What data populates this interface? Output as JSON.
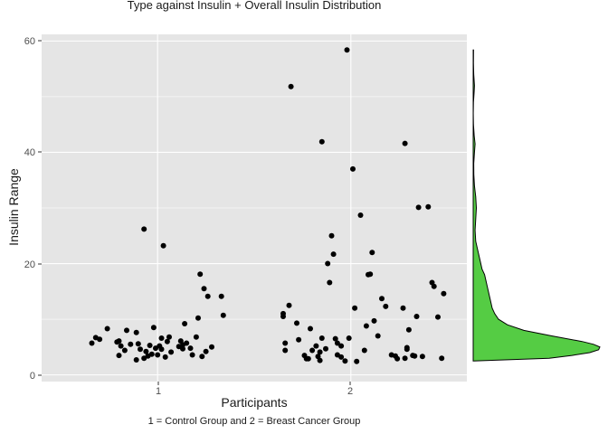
{
  "chart_data": {
    "type": "scatter",
    "title": "Type against Insulin + Overall Insulin Distribution",
    "xlabel": "Participants",
    "ylabel": "Insulin Range",
    "caption": "1 = Control Group and 2 = Breast Cancer Group",
    "x_ticks": [
      "1",
      "2"
    ],
    "y_ticks": [
      "0",
      "20",
      "40",
      "60"
    ],
    "xlim": [
      0.4,
      2.6
    ],
    "ylim": [
      -1.2,
      61.2
    ],
    "grid": true,
    "colors": {
      "panel": "#e5e5e5",
      "grid": "#ffffff",
      "point": "#000000",
      "density_fill": "#55cc44",
      "density_line": "#000000"
    },
    "series": [
      {
        "group": "1",
        "points": [
          [
            0.66,
            5.7
          ],
          [
            0.68,
            6.7
          ],
          [
            0.7,
            6.4
          ],
          [
            0.74,
            8.3
          ],
          [
            0.79,
            5.9
          ],
          [
            0.8,
            6.1
          ],
          [
            0.8,
            3.5
          ],
          [
            0.81,
            5.2
          ],
          [
            0.83,
            4.4
          ],
          [
            0.84,
            8.0
          ],
          [
            0.86,
            5.5
          ],
          [
            0.89,
            7.6
          ],
          [
            0.9,
            5.6
          ],
          [
            0.89,
            2.7
          ],
          [
            0.91,
            4.6
          ],
          [
            0.93,
            26.2
          ],
          [
            0.93,
            3.0
          ],
          [
            0.94,
            4.2
          ],
          [
            0.95,
            3.4
          ],
          [
            0.96,
            5.3
          ],
          [
            0.97,
            3.7
          ],
          [
            0.98,
            8.5
          ],
          [
            0.99,
            4.8
          ],
          [
            1.0,
            3.6
          ],
          [
            1.01,
            5.2
          ],
          [
            1.02,
            4.6
          ],
          [
            1.02,
            6.6
          ],
          [
            1.03,
            23.2
          ],
          [
            1.04,
            3.2
          ],
          [
            1.05,
            6.0
          ],
          [
            1.06,
            6.8
          ],
          [
            1.07,
            4.1
          ],
          [
            1.11,
            5.1
          ],
          [
            1.12,
            6.1
          ],
          [
            1.13,
            4.7
          ],
          [
            1.13,
            5.4
          ],
          [
            1.14,
            9.2
          ],
          [
            1.15,
            5.7
          ],
          [
            1.17,
            4.8
          ],
          [
            1.18,
            3.6
          ],
          [
            1.2,
            6.8
          ],
          [
            1.21,
            10.2
          ],
          [
            1.22,
            18.1
          ],
          [
            1.23,
            3.3
          ],
          [
            1.24,
            15.5
          ],
          [
            1.25,
            4.2
          ],
          [
            1.26,
            14.1
          ],
          [
            1.28,
            5.0
          ],
          [
            1.33,
            14.1
          ],
          [
            1.34,
            10.7
          ]
        ]
      },
      {
        "group": "2",
        "points": [
          [
            1.65,
            10.5
          ],
          [
            1.65,
            11.0
          ],
          [
            1.66,
            5.7
          ],
          [
            1.66,
            4.4
          ],
          [
            1.68,
            12.5
          ],
          [
            1.69,
            51.8
          ],
          [
            1.72,
            9.3
          ],
          [
            1.73,
            6.3
          ],
          [
            1.76,
            3.5
          ],
          [
            1.77,
            2.9
          ],
          [
            1.78,
            2.9
          ],
          [
            1.79,
            8.3
          ],
          [
            1.8,
            4.4
          ],
          [
            1.82,
            5.2
          ],
          [
            1.83,
            3.3
          ],
          [
            1.84,
            2.6
          ],
          [
            1.84,
            4.1
          ],
          [
            1.85,
            6.6
          ],
          [
            1.85,
            41.9
          ],
          [
            1.87,
            4.7
          ],
          [
            1.88,
            20.0
          ],
          [
            1.89,
            16.6
          ],
          [
            1.9,
            25.0
          ],
          [
            1.91,
            21.7
          ],
          [
            1.92,
            6.5
          ],
          [
            1.93,
            5.7
          ],
          [
            1.93,
            3.6
          ],
          [
            1.95,
            3.2
          ],
          [
            1.95,
            5.2
          ],
          [
            1.97,
            2.5
          ],
          [
            1.98,
            58.4
          ],
          [
            1.99,
            6.6
          ],
          [
            2.01,
            37.0
          ],
          [
            2.02,
            12.0
          ],
          [
            2.03,
            2.4
          ],
          [
            2.05,
            28.7
          ],
          [
            2.07,
            4.4
          ],
          [
            2.08,
            8.8
          ],
          [
            2.09,
            18.0
          ],
          [
            2.1,
            18.1
          ],
          [
            2.11,
            22.0
          ],
          [
            2.12,
            9.7
          ],
          [
            2.14,
            7.0
          ],
          [
            2.16,
            13.7
          ],
          [
            2.18,
            12.3
          ],
          [
            2.21,
            3.6
          ],
          [
            2.23,
            3.4
          ],
          [
            2.24,
            2.9
          ],
          [
            2.27,
            12.0
          ],
          [
            2.28,
            41.6
          ],
          [
            2.28,
            3.0
          ],
          [
            2.29,
            4.6
          ],
          [
            2.29,
            4.9
          ],
          [
            2.3,
            8.1
          ],
          [
            2.32,
            3.5
          ],
          [
            2.33,
            3.4
          ],
          [
            2.34,
            10.5
          ],
          [
            2.35,
            30.1
          ],
          [
            2.37,
            3.3
          ],
          [
            2.4,
            30.2
          ],
          [
            2.42,
            16.6
          ],
          [
            2.43,
            15.9
          ],
          [
            2.45,
            10.4
          ],
          [
            2.47,
            3.0
          ],
          [
            2.48,
            14.6
          ]
        ]
      }
    ],
    "marginal_density": {
      "type": "area",
      "y": [
        2.5,
        3.0,
        3.5,
        4.0,
        4.5,
        5.0,
        5.5,
        6.0,
        7.0,
        8.0,
        9.0,
        10.0,
        11.0,
        12.0,
        13.0,
        14.0,
        15.0,
        16.0,
        17.0,
        18.0,
        19.0,
        20.0,
        21.0,
        22.0,
        24.0,
        26.0,
        28.0,
        30.0,
        32.0,
        34.0,
        36.0,
        38.0,
        40.0,
        41.5,
        43.0,
        45.0,
        47.0,
        49.0,
        51.0,
        52.0,
        54.0,
        56.0,
        58.4
      ],
      "density": [
        0.0,
        0.6,
        0.78,
        0.92,
        0.99,
        1.0,
        0.95,
        0.86,
        0.62,
        0.4,
        0.27,
        0.2,
        0.17,
        0.15,
        0.14,
        0.13,
        0.12,
        0.11,
        0.1,
        0.09,
        0.07,
        0.06,
        0.05,
        0.04,
        0.02,
        0.015,
        0.02,
        0.025,
        0.02,
        0.01,
        0.005,
        0.004,
        0.01,
        0.015,
        0.008,
        0.002,
        0.001,
        0.002,
        0.008,
        0.01,
        0.004,
        0.002,
        0.003
      ]
    }
  }
}
